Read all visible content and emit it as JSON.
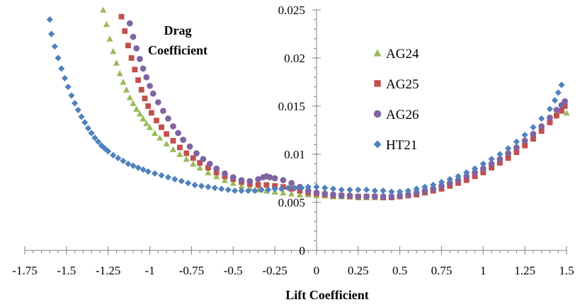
{
  "chart_data": {
    "type": "scatter",
    "xlabel": "Lift Coefficient",
    "ylabel": "Drag Coefficient",
    "xlim": [
      -1.75,
      1.5
    ],
    "ylim": [
      0,
      0.025
    ],
    "x_ticks": [
      "-1.75",
      "-1.5",
      "-1.25",
      "-1",
      "-0.75",
      "-0.5",
      "-0.25",
      "0",
      "0.25",
      "0.5",
      "0.75",
      "1",
      "1.25",
      "1.5"
    ],
    "y_ticks": [
      "0",
      "0.005",
      "0.01",
      "0.015",
      "0.02",
      "0.025"
    ],
    "grid": false,
    "legend_position": "right",
    "series": [
      {
        "name": "AG24",
        "marker": "triangle",
        "color": "#9BBB59",
        "x": [
          -1.28,
          -1.26,
          -1.24,
          -1.22,
          -1.2,
          -1.18,
          -1.16,
          -1.14,
          -1.12,
          -1.1,
          -1.08,
          -1.06,
          -1.04,
          -1.02,
          -1.0,
          -0.97,
          -0.94,
          -0.9,
          -0.86,
          -0.82,
          -0.78,
          -0.74,
          -0.7,
          -0.65,
          -0.6,
          -0.55,
          -0.5,
          -0.45,
          -0.4,
          -0.35,
          -0.3,
          -0.25,
          -0.2,
          -0.15,
          -0.1,
          -0.05,
          0.0,
          0.05,
          0.1,
          0.15,
          0.2,
          0.25,
          0.3,
          0.35,
          0.4,
          0.45,
          0.5,
          0.55,
          0.6,
          0.65,
          0.7,
          0.75,
          0.8,
          0.85,
          0.9,
          0.95,
          1.0,
          1.05,
          1.1,
          1.15,
          1.2,
          1.25,
          1.3,
          1.35,
          1.4,
          1.44,
          1.47,
          1.5
        ],
        "y": [
          0.025,
          0.0235,
          0.022,
          0.0207,
          0.0195,
          0.0184,
          0.0175,
          0.0167,
          0.0159,
          0.0153,
          0.0147,
          0.0142,
          0.0137,
          0.0132,
          0.0128,
          0.0122,
          0.0117,
          0.0111,
          0.0105,
          0.01,
          0.0095,
          0.009,
          0.0086,
          0.0081,
          0.0077,
          0.0073,
          0.007,
          0.0067,
          0.0065,
          0.0063,
          0.0062,
          0.0061,
          0.006,
          0.0059,
          0.0058,
          0.0058,
          0.0057,
          0.0057,
          0.0056,
          0.0056,
          0.0056,
          0.0055,
          0.0055,
          0.0055,
          0.0055,
          0.0056,
          0.0057,
          0.0058,
          0.006,
          0.0062,
          0.0064,
          0.0066,
          0.0069,
          0.0072,
          0.0075,
          0.0079,
          0.0083,
          0.0088,
          0.0093,
          0.0099,
          0.0106,
          0.0113,
          0.0121,
          0.0129,
          0.0137,
          0.0143,
          0.0148,
          0.0143
        ]
      },
      {
        "name": "AG25",
        "marker": "square",
        "color": "#C0504D",
        "x": [
          -1.17,
          -1.15,
          -1.13,
          -1.11,
          -1.09,
          -1.07,
          -1.05,
          -1.03,
          -1.01,
          -0.99,
          -0.96,
          -0.93,
          -0.9,
          -0.86,
          -0.82,
          -0.78,
          -0.74,
          -0.7,
          -0.65,
          -0.6,
          -0.55,
          -0.5,
          -0.45,
          -0.4,
          -0.35,
          -0.3,
          -0.25,
          -0.2,
          -0.15,
          -0.1,
          -0.05,
          0.0,
          0.05,
          0.1,
          0.15,
          0.2,
          0.25,
          0.3,
          0.35,
          0.4,
          0.45,
          0.5,
          0.55,
          0.6,
          0.65,
          0.7,
          0.75,
          0.8,
          0.85,
          0.9,
          0.95,
          1.0,
          1.05,
          1.1,
          1.15,
          1.2,
          1.25,
          1.3,
          1.35,
          1.4,
          1.44,
          1.47,
          1.49
        ],
        "y": [
          0.0243,
          0.0228,
          0.0213,
          0.02,
          0.0188,
          0.0177,
          0.0167,
          0.0158,
          0.015,
          0.0143,
          0.0135,
          0.0128,
          0.0121,
          0.0114,
          0.0107,
          0.0101,
          0.0096,
          0.0091,
          0.0086,
          0.0081,
          0.0077,
          0.0074,
          0.0071,
          0.0069,
          0.0068,
          0.0068,
          0.0067,
          0.0066,
          0.0064,
          0.0062,
          0.006,
          0.0059,
          0.0058,
          0.0057,
          0.0057,
          0.0056,
          0.0056,
          0.0056,
          0.0056,
          0.0055,
          0.0055,
          0.0056,
          0.0057,
          0.0058,
          0.006,
          0.0062,
          0.0064,
          0.0067,
          0.007,
          0.0073,
          0.0077,
          0.0081,
          0.0086,
          0.0091,
          0.0096,
          0.0102,
          0.0109,
          0.0116,
          0.0124,
          0.0133,
          0.014,
          0.0145,
          0.015
        ]
      },
      {
        "name": "AG26",
        "marker": "circle",
        "color": "#8064A2",
        "x": [
          -1.12,
          -1.1,
          -1.08,
          -1.06,
          -1.04,
          -1.02,
          -1.0,
          -0.98,
          -0.95,
          -0.92,
          -0.89,
          -0.86,
          -0.83,
          -0.8,
          -0.76,
          -0.72,
          -0.68,
          -0.64,
          -0.6,
          -0.55,
          -0.5,
          -0.45,
          -0.4,
          -0.35,
          -0.32,
          -0.3,
          -0.28,
          -0.25,
          -0.2,
          -0.15,
          -0.1,
          -0.05,
          0.0,
          0.05,
          0.1,
          0.15,
          0.2,
          0.25,
          0.3,
          0.35,
          0.4,
          0.45,
          0.5,
          0.55,
          0.6,
          0.65,
          0.7,
          0.75,
          0.8,
          0.85,
          0.9,
          0.95,
          1.0,
          1.05,
          1.1,
          1.15,
          1.2,
          1.25,
          1.3,
          1.35,
          1.4,
          1.44,
          1.47,
          1.49
        ],
        "y": [
          0.0236,
          0.0222,
          0.021,
          0.0199,
          0.0189,
          0.018,
          0.0171,
          0.0163,
          0.0154,
          0.0145,
          0.0137,
          0.0129,
          0.0122,
          0.0115,
          0.0108,
          0.0101,
          0.0095,
          0.009,
          0.0085,
          0.008,
          0.0076,
          0.0073,
          0.0072,
          0.0074,
          0.0076,
          0.0077,
          0.0076,
          0.0075,
          0.0073,
          0.007,
          0.0066,
          0.0062,
          0.006,
          0.0059,
          0.0058,
          0.0057,
          0.0057,
          0.0056,
          0.0056,
          0.0056,
          0.0056,
          0.0056,
          0.0057,
          0.0058,
          0.006,
          0.0062,
          0.0064,
          0.0067,
          0.007,
          0.0073,
          0.0077,
          0.0081,
          0.0085,
          0.009,
          0.0095,
          0.0101,
          0.0107,
          0.0114,
          0.0121,
          0.0129,
          0.0138,
          0.0146,
          0.0151,
          0.0155
        ]
      },
      {
        "name": "HT21",
        "marker": "diamond",
        "color": "#4F81BD",
        "x": [
          -1.6,
          -1.59,
          -1.57,
          -1.55,
          -1.53,
          -1.51,
          -1.49,
          -1.47,
          -1.45,
          -1.43,
          -1.41,
          -1.39,
          -1.37,
          -1.35,
          -1.33,
          -1.31,
          -1.29,
          -1.27,
          -1.25,
          -1.22,
          -1.19,
          -1.16,
          -1.13,
          -1.1,
          -1.07,
          -1.04,
          -1.01,
          -0.97,
          -0.93,
          -0.89,
          -0.85,
          -0.81,
          -0.77,
          -0.73,
          -0.69,
          -0.65,
          -0.61,
          -0.57,
          -0.53,
          -0.49,
          -0.45,
          -0.41,
          -0.37,
          -0.33,
          -0.29,
          -0.25,
          -0.21,
          -0.17,
          -0.13,
          -0.09,
          -0.05,
          0.0,
          0.05,
          0.1,
          0.15,
          0.2,
          0.25,
          0.3,
          0.35,
          0.4,
          0.45,
          0.5,
          0.55,
          0.6,
          0.65,
          0.7,
          0.75,
          0.8,
          0.85,
          0.9,
          0.95,
          1.0,
          1.05,
          1.1,
          1.15,
          1.2,
          1.25,
          1.3,
          1.35,
          1.4,
          1.43,
          1.45,
          1.47
        ],
        "y": [
          0.024,
          0.0225,
          0.0212,
          0.02,
          0.0189,
          0.0179,
          0.017,
          0.0161,
          0.0153,
          0.0146,
          0.0139,
          0.0133,
          0.0127,
          0.0122,
          0.0117,
          0.0113,
          0.0109,
          0.0106,
          0.0103,
          0.0099,
          0.0096,
          0.0093,
          0.009,
          0.0088,
          0.0086,
          0.0084,
          0.0082,
          0.008,
          0.0078,
          0.0076,
          0.0074,
          0.0072,
          0.007,
          0.0068,
          0.0067,
          0.0066,
          0.0065,
          0.0064,
          0.0063,
          0.0062,
          0.0062,
          0.0062,
          0.0062,
          0.0063,
          0.0063,
          0.0064,
          0.0064,
          0.0065,
          0.0065,
          0.0065,
          0.0066,
          0.0066,
          0.0065,
          0.0064,
          0.0063,
          0.0063,
          0.0063,
          0.0063,
          0.0062,
          0.0062,
          0.0061,
          0.0061,
          0.0062,
          0.0064,
          0.0066,
          0.0068,
          0.0071,
          0.0074,
          0.0077,
          0.0081,
          0.0085,
          0.009,
          0.0095,
          0.01,
          0.0106,
          0.0113,
          0.012,
          0.0128,
          0.0137,
          0.0147,
          0.0156,
          0.0164,
          0.0172
        ]
      }
    ]
  }
}
